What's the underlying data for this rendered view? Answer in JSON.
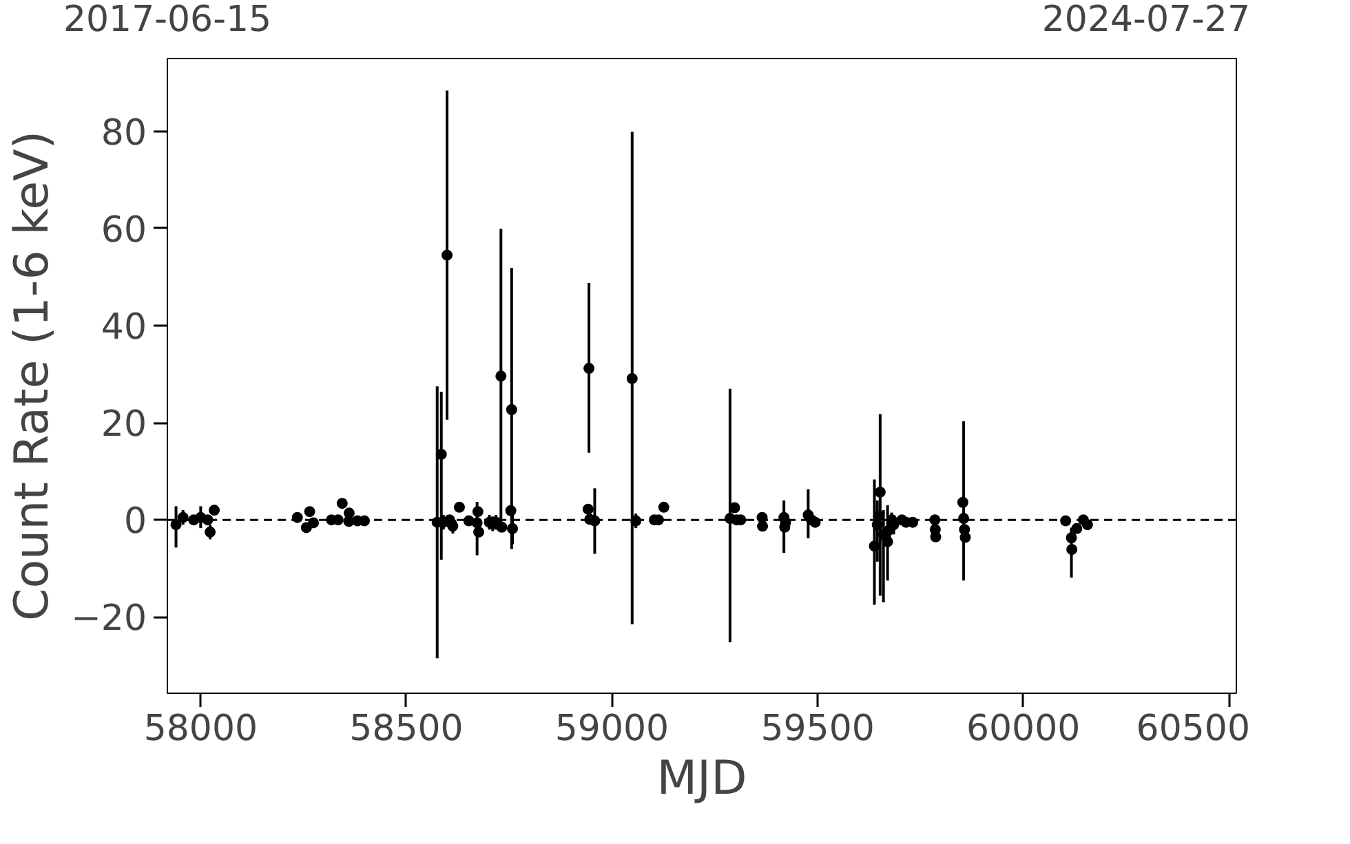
{
  "chart_data": {
    "type": "scatter",
    "xlabel": "MJD",
    "ylabel": "Count Rate (1-6 keV)",
    "xlim": [
      57919,
      60518
    ],
    "ylim": [
      -35.7,
      95
    ],
    "xticks": [
      58000,
      58500,
      59000,
      59500,
      60000,
      60500
    ],
    "yticks": [
      {
        "value": -20,
        "label": "−20"
      },
      0,
      20,
      40,
      60,
      80
    ],
    "x2lim": [
      "2017-06-15",
      "2024-07-27"
    ],
    "x2ticks": [
      "2017-06-15",
      "2024-07-27"
    ],
    "marker": "circle",
    "grid": false,
    "ref_lines": [
      {
        "axis": "y",
        "value": 0,
        "color": "#000000",
        "line_style": "dashed"
      }
    ],
    "series": [
      {
        "color": "#000000",
        "x": [
          57940,
          57957,
          57983,
          58000,
          58017,
          58023,
          58033,
          58235,
          58257,
          58265,
          58274,
          58318,
          58334,
          58344,
          58360,
          58361,
          58381,
          58398,
          58575,
          58585,
          58590,
          58599,
          58605,
          58610,
          58613,
          58629,
          58652,
          58672,
          58674,
          58676,
          58702,
          58710,
          58718,
          58730,
          58732,
          58754,
          58756,
          58758,
          58942,
          58946,
          58944,
          58958,
          59049,
          59058,
          59103,
          59113,
          59126,
          59287,
          59298,
          59303,
          59313,
          59365,
          59366,
          59418,
          59420,
          59422,
          59477,
          59485,
          59494,
          59638,
          59645,
          59648,
          59652,
          59660,
          59670,
          59675,
          59680,
          59685,
          59705,
          59715,
          59731,
          59785,
          59786,
          59787,
          59853,
          59855,
          59857,
          59859,
          60103,
          60117,
          60118,
          60130,
          60146,
          60156
        ],
        "values": [
          -1,
          0.5,
          0,
          0.5,
          0,
          -2.5,
          2,
          0.5,
          -1.6,
          1.7,
          -0.6,
          0,
          0,
          3.4,
          -0.3,
          1.4,
          -0.2,
          -0.2,
          -0.5,
          13.5,
          -0.5,
          54.5,
          0,
          -0.8,
          -1.3,
          2.6,
          -0.2,
          -0.6,
          1.7,
          -2.5,
          -0.5,
          -0.8,
          -0.5,
          29.6,
          -1.5,
          1.9,
          22.7,
          -1.8,
          2.2,
          0.1,
          31.2,
          -0.2,
          29.1,
          -0.2,
          0,
          0,
          2.6,
          0.3,
          2.5,
          0,
          0,
          0.5,
          -1.3,
          0.5,
          -1.5,
          -0.5,
          1,
          0,
          -0.5,
          -5.4,
          -1,
          0.8,
          5.7,
          -3,
          -4.5,
          -2,
          0,
          -1,
          0,
          -0.5,
          -0.5,
          0,
          -2,
          -3.5,
          3.6,
          0.3,
          -2,
          -3.6,
          -0.2,
          -3.7,
          -6.1,
          -1.8,
          0,
          -1
        ],
        "errors": [
          [
            -5.7,
            2.8
          ],
          1.5,
          1,
          [
            -1.7,
            2.8
          ],
          1,
          1.5,
          null,
          null,
          1,
          null,
          1,
          null,
          null,
          null,
          1,
          null,
          null,
          null,
          [
            -28.5,
            27.5
          ],
          [
            -8.2,
            26.4
          ],
          1.5,
          [
            20.6,
            88.4
          ],
          1,
          1,
          1.5,
          1,
          null,
          [
            -7.3,
            3.7
          ],
          null,
          null,
          1.5,
          1.5,
          1.5,
          [
            -1.7,
            59.9
          ],
          null,
          null,
          [
            -6,
            51.9
          ],
          [
            -5,
            1
          ],
          null,
          null,
          [
            13.8,
            48.8
          ],
          [
            -7,
            6.5
          ],
          [
            -21.5,
            79.9
          ],
          1.5,
          null,
          1,
          null,
          [
            -25.2,
            27
          ],
          null,
          null,
          null,
          null,
          null,
          [
            -6.8,
            4
          ],
          null,
          null,
          [
            -3.8,
            6.3
          ],
          1,
          1,
          [
            -17.5,
            8.3
          ],
          [
            -8.6,
            4
          ],
          null,
          [
            -15.6,
            21.8
          ],
          [
            -17,
            2
          ],
          [
            -12.5,
            3
          ],
          2,
          1.5,
          2,
          1,
          1,
          1,
          null,
          null,
          1,
          null,
          [
            -12.5,
            20.3
          ],
          null,
          null,
          null,
          [
            -11.9,
            -1.6
          ],
          null,
          1,
          null,
          1
        ]
      }
    ]
  }
}
